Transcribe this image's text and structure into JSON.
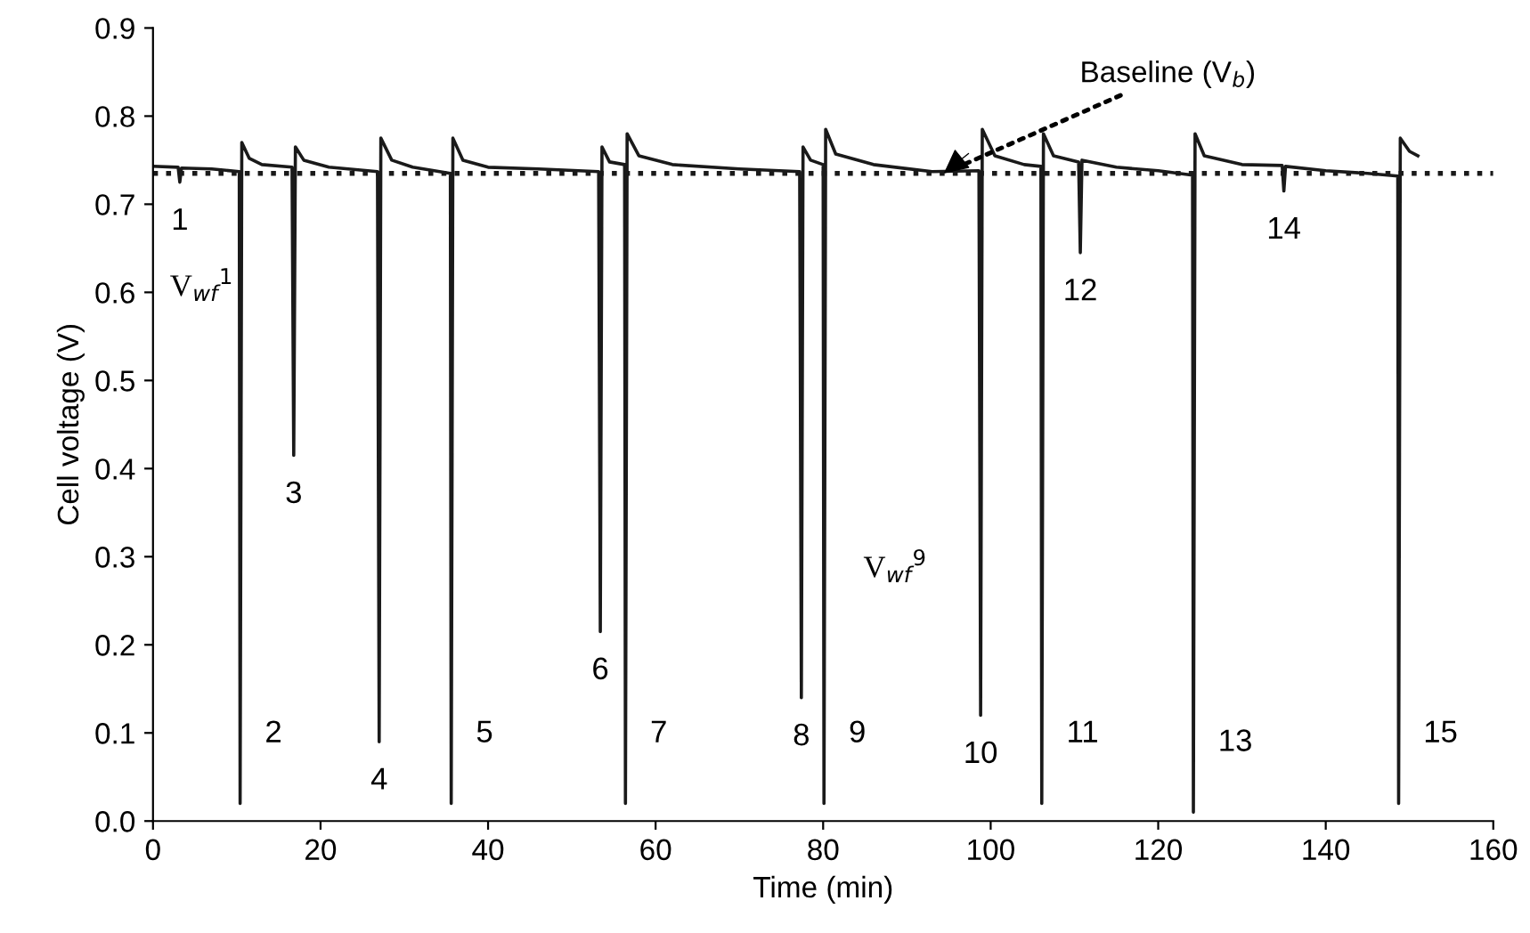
{
  "chart_data": {
    "type": "line",
    "xlabel": "Time (min)",
    "ylabel": "Cell voltage (V)",
    "xlim": [
      0,
      160
    ],
    "xticks": [
      0,
      20,
      40,
      60,
      80,
      100,
      120,
      140,
      160
    ],
    "ylim": [
      0,
      0.9
    ],
    "yticks": [
      {
        "value": 0,
        "label": "0.0"
      },
      0.1,
      0.2,
      0.3,
      0.4,
      0.5,
      0.6,
      0.7,
      0.8,
      0.9
    ],
    "grid": false,
    "marker": "none",
    "line_style": "solid",
    "series": [
      {
        "color": "#1a1a1a",
        "x": [
          0,
          3.0,
          3.2,
          3.4,
          7,
          10.3,
          10.4,
          10.6,
          11.5,
          13,
          16.6,
          16.8,
          17.0,
          18,
          21,
          26.8,
          27.0,
          27.2,
          28.5,
          31,
          35.5,
          35.6,
          35.8,
          37,
          40,
          46,
          53.2,
          53.4,
          53.6,
          54.5,
          56.3,
          56.4,
          56.6,
          58,
          62,
          70,
          77.2,
          77.4,
          77.6,
          78.5,
          80.0,
          80.1,
          80.3,
          81.5,
          86,
          93,
          98.6,
          98.8,
          99.0,
          100.5,
          104,
          106.0,
          106.1,
          106.3,
          107.5,
          110.5,
          110.7,
          110.9,
          115,
          120,
          124.1,
          124.2,
          124.4,
          125.5,
          130,
          134.8,
          135,
          135.2,
          140,
          145,
          148.6,
          148.7,
          148.9,
          150,
          151
        ],
        "values": [
          0.743,
          0.742,
          0.725,
          0.741,
          0.74,
          0.737,
          0.02,
          0.77,
          0.752,
          0.745,
          0.742,
          0.415,
          0.765,
          0.75,
          0.742,
          0.737,
          0.09,
          0.775,
          0.75,
          0.742,
          0.735,
          0.02,
          0.775,
          0.75,
          0.742,
          0.74,
          0.737,
          0.215,
          0.765,
          0.748,
          0.745,
          0.02,
          0.78,
          0.755,
          0.745,
          0.74,
          0.737,
          0.14,
          0.765,
          0.75,
          0.745,
          0.02,
          0.785,
          0.757,
          0.745,
          0.737,
          0.738,
          0.12,
          0.785,
          0.755,
          0.745,
          0.743,
          0.02,
          0.78,
          0.755,
          0.748,
          0.645,
          0.75,
          0.742,
          0.738,
          0.733,
          0.01,
          0.78,
          0.755,
          0.745,
          0.744,
          0.715,
          0.743,
          0.738,
          0.735,
          0.732,
          0.02,
          0.775,
          0.76,
          0.755
        ]
      }
    ],
    "ref_lines": [
      {
        "axis": "y",
        "value": 0.735,
        "label": "Baseline (V$_{b}$)",
        "line_style": "dotted",
        "color": "#1a1a1a"
      }
    ],
    "annotations": [
      {
        "text": "1",
        "x": 3.2,
        "y": 0.725
      },
      {
        "text": "V$_{wf}$$^{1}$",
        "x": 3.2,
        "y": 0.725
      },
      {
        "text": "2",
        "x": 10.4,
        "y": 0.02
      },
      {
        "text": "3",
        "x": 16.8,
        "y": 0.415
      },
      {
        "text": "4",
        "x": 27.0,
        "y": 0.09
      },
      {
        "text": "5",
        "x": 35.6,
        "y": 0.02
      },
      {
        "text": "6",
        "x": 53.4,
        "y": 0.215
      },
      {
        "text": "7",
        "x": 56.4,
        "y": 0.02
      },
      {
        "text": "8",
        "x": 77.4,
        "y": 0.14
      },
      {
        "text": "9",
        "x": 80.1,
        "y": 0.02
      },
      "V$_{wf}$$^{9}$",
      {
        "text": "10",
        "x": 98.8,
        "y": 0.12
      },
      {
        "text": "11",
        "x": 106.1,
        "y": 0.02
      },
      {
        "text": "12",
        "x": 110.7,
        "y": 0.645
      },
      {
        "text": "13",
        "x": 124.2,
        "y": 0.01
      },
      {
        "text": "14",
        "x": 135,
        "y": 0.715
      },
      {
        "text": "15",
        "x": 148.7,
        "y": 0.02
      }
    ]
  }
}
